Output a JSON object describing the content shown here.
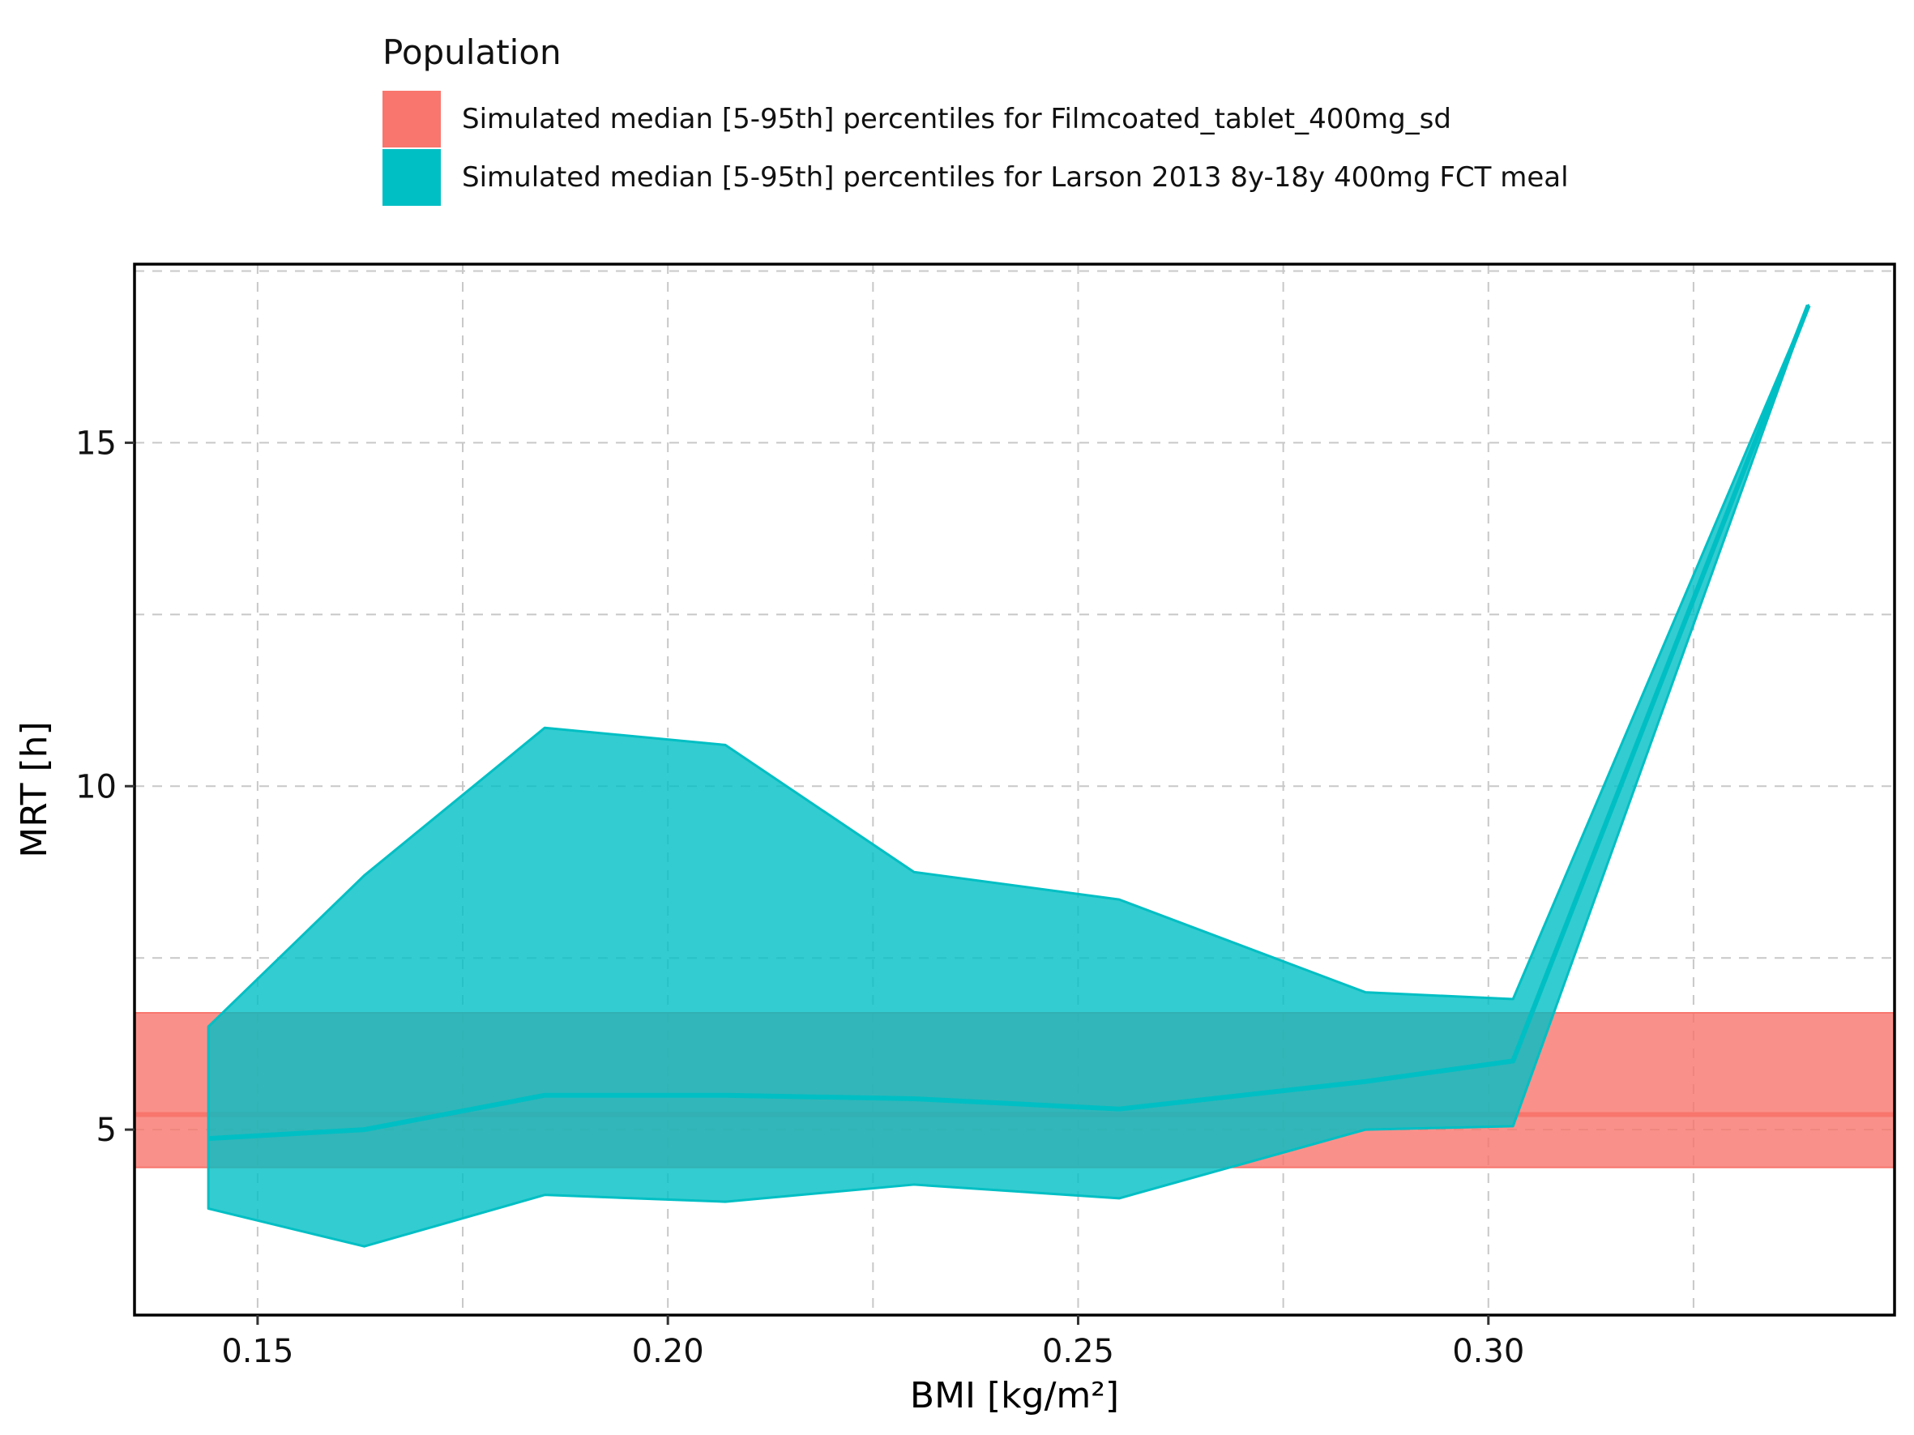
{
  "legend": {
    "title": "Population",
    "placement": "top",
    "items": [
      {
        "label": "Simulated median [5-95th] percentiles for Filmcoated_tablet_400mg_sd",
        "color": "#F8766D"
      },
      {
        "label": "Simulated median [5-95th] percentiles for Larson 2013 8y-18y 400mg FCT meal",
        "color": "#00BFC4"
      }
    ]
  },
  "chart_data": {
    "type": "area",
    "xlabel": "BMI [kg/m²]",
    "ylabel": "MRT [h]",
    "xlim": [
      0.135,
      0.3495
    ],
    "ylim": [
      2.3,
      17.6
    ],
    "xticks": [
      {
        "value": 0.15,
        "label": "0.15"
      },
      {
        "value": 0.2,
        "label": "0.20"
      },
      {
        "value": 0.25,
        "label": "0.25"
      },
      {
        "value": 0.3,
        "label": "0.30"
      }
    ],
    "yticks": [
      {
        "value": 5,
        "label": "5"
      },
      {
        "value": 10,
        "label": "10"
      },
      {
        "value": 15,
        "label": "15"
      }
    ],
    "x_minor_gridlines": [
      0.175,
      0.225,
      0.275,
      0.325
    ],
    "y_minor_gridlines": [
      7.5,
      12.5,
      17.5
    ],
    "grid": true,
    "series": [
      {
        "name": "Simulated median [5-95th] percentiles for Filmcoated_tablet_400mg_sd",
        "kind": "horizontal-band",
        "color": "#F8766D",
        "median": 5.22,
        "lower": 4.45,
        "upper": 6.7
      },
      {
        "name": "Simulated median [5-95th] percentiles for Larson 2013 8y-18y 400mg FCT meal",
        "kind": "ribbon",
        "color": "#00BFC4",
        "x": [
          0.144,
          0.163,
          0.185,
          0.207,
          0.23,
          0.255,
          0.285,
          0.303,
          0.339
        ],
        "median": [
          4.87,
          5.0,
          5.5,
          5.5,
          5.45,
          5.3,
          5.7,
          6.0,
          17.0
        ],
        "lower": [
          3.85,
          3.3,
          4.05,
          3.95,
          4.2,
          4.0,
          5.0,
          5.05,
          17.0
        ],
        "upper": [
          6.5,
          8.7,
          10.85,
          10.6,
          8.75,
          8.35,
          7.0,
          6.9,
          17.0
        ]
      }
    ]
  }
}
